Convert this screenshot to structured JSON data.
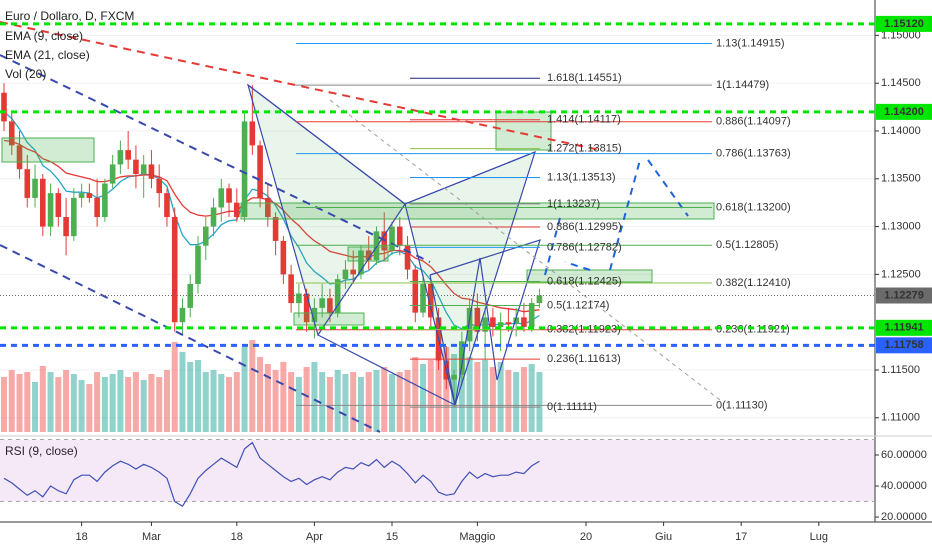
{
  "chart_data": {
    "type": "candlestick",
    "title": "Euro / Dollaro, D, FXCM",
    "categories": [
      null,
      null,
      null,
      null,
      null,
      null,
      null,
      null,
      null,
      null,
      "18",
      null,
      null,
      null,
      null,
      null,
      null,
      null,
      null,
      "Mar",
      null,
      null,
      null,
      null,
      null,
      null,
      null,
      null,
      null,
      null,
      "18",
      null,
      null,
      null,
      null,
      null,
      null,
      null,
      null,
      null,
      "Apr",
      null,
      null,
      null,
      null,
      null,
      null,
      null,
      null,
      null,
      "15",
      null,
      null,
      null,
      null,
      null,
      null,
      null,
      null,
      null,
      null,
      "Maggio",
      null,
      null,
      null,
      null,
      null,
      null,
      null,
      null,
      null,
      null,
      null,
      null,
      null,
      "20",
      null,
      null,
      null,
      null,
      null,
      null,
      null,
      null,
      null,
      "Giu",
      null,
      null,
      null,
      null,
      null,
      null,
      null,
      null,
      null,
      "17",
      null,
      null,
      null,
      null,
      null,
      null,
      null,
      null,
      null,
      "Lug",
      null
    ],
    "open": [
      1.144,
      1.141,
      1.1385,
      1.136,
      1.133,
      1.135,
      1.13,
      1.1335,
      1.131,
      1.129,
      1.133,
      1.1335,
      1.133,
      1.131,
      1.1345,
      1.1365,
      1.138,
      1.137,
      1.1355,
      1.1365,
      1.135,
      1.1335,
      1.131,
      1.12,
      1.1215,
      1.124,
      1.128,
      1.13,
      1.132,
      1.134,
      1.1325,
      1.131,
      1.141,
      1.1385,
      1.133,
      1.131,
      1.1285,
      1.125,
      1.122,
      1.123,
      1.12,
      1.1215,
      1.1225,
      1.121,
      1.1245,
      1.1255,
      1.125,
      1.1275,
      1.1265,
      1.1295,
      1.1275,
      1.13,
      1.128,
      1.1255,
      1.121,
      1.124,
      1.1205,
      1.116,
      1.114,
      1.1145,
      1.118,
      1.1215,
      1.119,
      1.1205,
      1.1195,
      1.12,
      1.1198,
      1.1205,
      1.1195,
      1.122,
      null,
      null,
      null,
      null,
      null,
      null,
      null,
      null,
      null,
      null,
      null,
      null,
      null,
      null,
      null,
      null,
      null,
      null,
      null,
      null,
      null,
      null,
      null,
      null,
      null,
      null,
      null,
      null,
      null,
      null,
      null,
      null,
      null,
      null,
      null,
      null,
      null
    ],
    "high": [
      1.145,
      1.142,
      1.14,
      1.1375,
      1.1365,
      1.1355,
      1.1345,
      1.134,
      1.133,
      1.134,
      1.1345,
      1.1345,
      1.135,
      1.135,
      1.1375,
      1.139,
      1.14,
      1.1385,
      1.1375,
      1.138,
      1.1365,
      1.134,
      1.132,
      1.1225,
      1.125,
      1.129,
      1.131,
      1.133,
      1.135,
      1.1345,
      1.134,
      1.142,
      1.1448,
      1.139,
      1.1345,
      1.1315,
      1.129,
      1.126,
      1.124,
      1.1235,
      1.1225,
      1.124,
      1.1235,
      1.125,
      1.1265,
      1.1275,
      1.128,
      1.129,
      1.13,
      1.1315,
      1.1305,
      1.131,
      1.129,
      1.126,
      1.125,
      1.1245,
      1.1215,
      1.1175,
      1.115,
      1.119,
      1.1225,
      1.123,
      1.1215,
      1.1215,
      1.121,
      1.1215,
      1.1215,
      1.122,
      1.1225,
      1.1235,
      null,
      null,
      null,
      null,
      null,
      null,
      null,
      null,
      null,
      null,
      null,
      null,
      null,
      null,
      null,
      null,
      null,
      null,
      null,
      null,
      null,
      null,
      null,
      null,
      null,
      null,
      null,
      null,
      null,
      null,
      null,
      null,
      null,
      null,
      null,
      null,
      null
    ],
    "low": [
      1.14,
      1.1375,
      1.135,
      1.132,
      1.132,
      1.129,
      1.129,
      1.13,
      1.127,
      1.1285,
      1.132,
      1.1325,
      1.13,
      1.1305,
      1.134,
      1.1355,
      1.136,
      1.134,
      1.133,
      1.134,
      1.132,
      1.13,
      1.119,
      1.1188,
      1.1205,
      1.123,
      1.1265,
      1.129,
      1.1305,
      1.131,
      1.1305,
      1.1305,
      1.1375,
      1.132,
      1.13,
      1.127,
      1.124,
      1.121,
      1.1205,
      1.119,
      1.1183,
      1.1205,
      1.12,
      1.1205,
      1.1235,
      1.124,
      1.1245,
      1.1255,
      1.126,
      1.1265,
      1.127,
      1.127,
      1.1245,
      1.12,
      1.1205,
      1.1195,
      1.115,
      1.113,
      1.1112,
      1.1135,
      1.117,
      1.118,
      1.116,
      1.1185,
      1.117,
      1.119,
      1.1185,
      1.119,
      1.119,
      1.1215,
      null,
      null,
      null,
      null,
      null,
      null,
      null,
      null,
      null,
      null,
      null,
      null,
      null,
      null,
      null,
      null,
      null,
      null,
      null,
      null,
      null,
      null,
      null,
      null,
      null,
      null,
      null,
      null,
      null,
      null,
      null,
      null,
      null,
      null,
      null,
      null,
      null
    ],
    "close": [
      1.141,
      1.1385,
      1.136,
      1.133,
      1.135,
      1.13,
      1.1335,
      1.131,
      1.129,
      1.133,
      1.1335,
      1.133,
      1.131,
      1.1345,
      1.1365,
      1.138,
      1.137,
      1.1355,
      1.1365,
      1.135,
      1.1335,
      1.131,
      1.12,
      1.1215,
      1.124,
      1.128,
      1.13,
      1.132,
      1.134,
      1.1325,
      1.131,
      1.141,
      1.1385,
      1.133,
      1.131,
      1.1285,
      1.125,
      1.122,
      1.123,
      1.12,
      1.1215,
      1.1225,
      1.121,
      1.1245,
      1.1255,
      1.125,
      1.1275,
      1.1265,
      1.1295,
      1.1275,
      1.13,
      1.128,
      1.1255,
      1.121,
      1.124,
      1.1205,
      1.116,
      1.114,
      1.1145,
      1.118,
      1.1215,
      1.119,
      1.1205,
      1.1195,
      1.12,
      1.1198,
      1.1205,
      1.1195,
      1.122,
      1.1228,
      null,
      null,
      null,
      null,
      null,
      null,
      null,
      null,
      null,
      null,
      null,
      null,
      null,
      null,
      null,
      null,
      null,
      null,
      null,
      null,
      null,
      null,
      null,
      null,
      null,
      null,
      null,
      null,
      null,
      null,
      null,
      null,
      null,
      null,
      null,
      null,
      null
    ],
    "up_color": "#4caf50",
    "down_color": "#e53935",
    "ylim": [
      1.1082,
      1.1537
    ],
    "yticks": [
      {
        "value": 1.15,
        "label": "1.15000"
      },
      {
        "value": 1.145,
        "label": "1.14500"
      },
      {
        "value": 1.14,
        "label": "1.14000"
      },
      {
        "value": 1.135,
        "label": "1.13500"
      },
      {
        "value": 1.13,
        "label": "1.13000"
      },
      {
        "value": 1.125,
        "label": "1.12500"
      },
      {
        "value": 1.115,
        "label": "1.11500"
      },
      {
        "value": 1.11,
        "label": "1.11000"
      }
    ],
    "grid": true,
    "series": [
      {
        "name": "EMA (9, close)",
        "color": "#26a6c9",
        "values": [
          1.142,
          1.1413,
          1.1402,
          1.1388,
          1.138,
          1.1364,
          1.1358,
          1.1349,
          1.1337,
          1.1336,
          1.1336,
          1.1335,
          1.133,
          1.1333,
          1.1339,
          1.1347,
          1.1352,
          1.1353,
          1.1355,
          1.1354,
          1.135,
          1.1342,
          1.1313,
          1.1291,
          1.1281,
          1.1281,
          1.1285,
          1.1292,
          1.1302,
          1.1306,
          1.1307,
          1.1328,
          1.1339,
          1.1337,
          1.1332,
          1.1322,
          1.1308,
          1.129,
          1.1278,
          1.1262,
          1.1253,
          1.1247,
          1.124,
          1.1241,
          1.1244,
          1.1245,
          1.1251,
          1.1254,
          1.1262,
          1.1265,
          1.1272,
          1.1274,
          1.127,
          1.1258,
          1.1254,
          1.1244,
          1.1227,
          1.121,
          1.1197,
          1.1193,
          1.1198,
          1.1196,
          1.1198,
          1.1197,
          1.1198,
          1.1198,
          1.1199,
          1.1198,
          1.1202,
          1.1207,
          null,
          null,
          null,
          null,
          null,
          null,
          null,
          null,
          null,
          null,
          null,
          null,
          null,
          null,
          null,
          null,
          null,
          null,
          null,
          null,
          null,
          null,
          null,
          null,
          null,
          null,
          null,
          null,
          null,
          null,
          null,
          null,
          null,
          null,
          null,
          null,
          null
        ]
      },
      {
        "name": "EMA (21, close)",
        "color": "#e53935",
        "values": [
          1.139,
          1.1389,
          1.1386,
          1.1381,
          1.1378,
          1.1371,
          1.1368,
          1.1363,
          1.1356,
          1.1354,
          1.1352,
          1.135,
          1.1347,
          1.1347,
          1.1349,
          1.1352,
          1.1353,
          1.1353,
          1.1354,
          1.1354,
          1.1352,
          1.1348,
          1.1334,
          1.1322,
          1.1315,
          1.1312,
          1.1311,
          1.1312,
          1.1314,
          1.1316,
          1.1316,
          1.1325,
          1.133,
          1.133,
          1.1328,
          1.1324,
          1.1317,
          1.1308,
          1.1301,
          1.1292,
          1.1285,
          1.128,
          1.1274,
          1.1272,
          1.127,
          1.1268,
          1.1269,
          1.1268,
          1.1271,
          1.1272,
          1.1275,
          1.1275,
          1.1273,
          1.1267,
          1.1264,
          1.1258,
          1.1249,
          1.1239,
          1.123,
          1.1225,
          1.1224,
          1.1221,
          1.1219,
          1.1217,
          1.1215,
          1.1214,
          1.1213,
          1.1211,
          1.1212,
          1.1213,
          null,
          null,
          null,
          null,
          null,
          null,
          null,
          null,
          null,
          null,
          null,
          null,
          null,
          null,
          null,
          null,
          null,
          null,
          null,
          null,
          null,
          null,
          null,
          null,
          null,
          null,
          null,
          null,
          null,
          null,
          null,
          null,
          null,
          null,
          null,
          null,
          null
        ]
      }
    ],
    "volume": {
      "name": "Vol (20)",
      "ylim": [
        0,
        100
      ],
      "values": [
        55,
        62,
        58,
        60,
        50,
        66,
        60,
        55,
        62,
        58,
        52,
        48,
        60,
        55,
        58,
        62,
        55,
        60,
        52,
        58,
        55,
        62,
        90,
        80,
        70,
        72,
        60,
        62,
        58,
        55,
        60,
        85,
        92,
        75,
        68,
        62,
        70,
        60,
        55,
        65,
        70,
        60,
        55,
        62,
        58,
        60,
        55,
        60,
        62,
        65,
        58,
        60,
        62,
        75,
        68,
        72,
        80,
        85,
        78,
        82,
        75,
        70,
        72,
        65,
        70,
        62,
        60,
        65,
        68,
        60,
        null,
        null,
        null,
        null,
        null,
        null,
        null,
        null,
        null,
        null,
        null,
        null,
        null,
        null,
        null,
        null,
        null,
        null,
        null,
        null,
        null,
        null,
        null,
        null,
        null,
        null,
        null,
        null,
        null,
        null,
        null,
        null,
        null,
        null,
        null,
        null,
        null
      ]
    },
    "rsi": {
      "name": "RSI (9, close)",
      "color": "#3f51b5",
      "ylim": [
        16.8,
        71.6
      ],
      "band": [
        30,
        70
      ],
      "yticks": [
        {
          "value": 60,
          "label": "60.00000"
        },
        {
          "value": 40,
          "label": "40.00000"
        },
        {
          "value": 20,
          "label": "20.00000"
        }
      ],
      "values": [
        45,
        42,
        38,
        34,
        37,
        33,
        40,
        37,
        35,
        44,
        47,
        47,
        43,
        49,
        53,
        56,
        54,
        51,
        54,
        52,
        49,
        45,
        30,
        27,
        35,
        45,
        50,
        54,
        58,
        55,
        52,
        64,
        68,
        58,
        54,
        50,
        46,
        43,
        45,
        41,
        44,
        46,
        44,
        49,
        52,
        51,
        55,
        53,
        57,
        52,
        56,
        53,
        48,
        42,
        47,
        43,
        36,
        34,
        35,
        43,
        49,
        45,
        48,
        46,
        47,
        47,
        49,
        48,
        53,
        56,
        null,
        null,
        null,
        null,
        null,
        null,
        null,
        null,
        null,
        null,
        null,
        null,
        null,
        null,
        null,
        null,
        null,
        null,
        null,
        null,
        null,
        null,
        null,
        null,
        null,
        null,
        null,
        null,
        null,
        null,
        null,
        null,
        null,
        null,
        null,
        null,
        null
      ]
    },
    "price_labels": [
      {
        "value": 1.1512,
        "label": "1.15120",
        "color": "#00e600",
        "text_color": "#111",
        "style": "dashed"
      },
      {
        "value": 1.142,
        "label": "1.14200",
        "color": "#00e600",
        "text_color": "#111",
        "style": "dashed"
      },
      {
        "value": 1.12279,
        "label": "1.12279",
        "color": "#6b6b6b",
        "text_color": "#fff",
        "style": "dotted"
      },
      {
        "value": 1.11941,
        "label": "1.11941",
        "color": "#00e600",
        "text_color": "#111",
        "style": "dashed"
      },
      {
        "value": 1.11758,
        "label": "1.11758",
        "color": "#2962ff",
        "text_color": "#fff",
        "style": "dashed"
      }
    ],
    "fib_right": [
      {
        "label": "1.13(1.14915)",
        "value": 1.14915,
        "color": "#2196f3"
      },
      {
        "label": "1(1.14479)",
        "value": 1.14479,
        "color": "#888888"
      },
      {
        "label": "0.886(1.14097)",
        "value": 1.14097,
        "color": "#e53935"
      },
      {
        "label": "0.786(1.13763)",
        "value": 1.13763,
        "color": "#2196f3"
      },
      {
        "label": "0.618(1.13200)",
        "value": 1.132,
        "color": "#4caf50"
      },
      {
        "label": "0.5(1.12805)",
        "value": 1.12805,
        "color": "#4caf50"
      },
      {
        "label": "0.382(1.12410)",
        "value": 1.1241,
        "color": "#8bc34a"
      },
      {
        "label": "0.236(1.11921)",
        "value": 1.11921,
        "color": "#e53935"
      },
      {
        "label": "0(1.11130)",
        "value": 1.1113,
        "color": "#888888"
      }
    ],
    "fib_left": [
      {
        "label": "1.618(1.14551)",
        "value": 1.14551,
        "color": "#1a237e"
      },
      {
        "label": "1.414(1.14117)",
        "value": 1.14117,
        "color": "#e53935"
      },
      {
        "label": "1.272(1.13815)",
        "value": 1.13815,
        "color": "#8bc34a"
      },
      {
        "label": "1.13(1.13513)",
        "value": 1.13513,
        "color": "#2196f3"
      },
      {
        "label": "1(1.13237)",
        "value": 1.13237,
        "color": "#888888"
      },
      {
        "label": "0.886(1.12995)",
        "value": 1.12995,
        "color": "#e53935"
      },
      {
        "label": "0.786(1.12782)",
        "value": 1.12782,
        "color": "#2196f3"
      },
      {
        "label": "0.618(1.12425)",
        "value": 1.12425,
        "color": "#4caf50"
      },
      {
        "label": "0.5(1.12174)",
        "value": 1.12174,
        "color": "#4caf50"
      },
      {
        "label": "0.382(1.11923)",
        "value": 1.11923,
        "color": "#8bc34a"
      },
      {
        "label": "0.236(1.11613)",
        "value": 1.11613,
        "color": "#e53935"
      },
      {
        "label": "0(1.11111)",
        "value": 1.11111,
        "color": "#888888"
      }
    ]
  }
}
